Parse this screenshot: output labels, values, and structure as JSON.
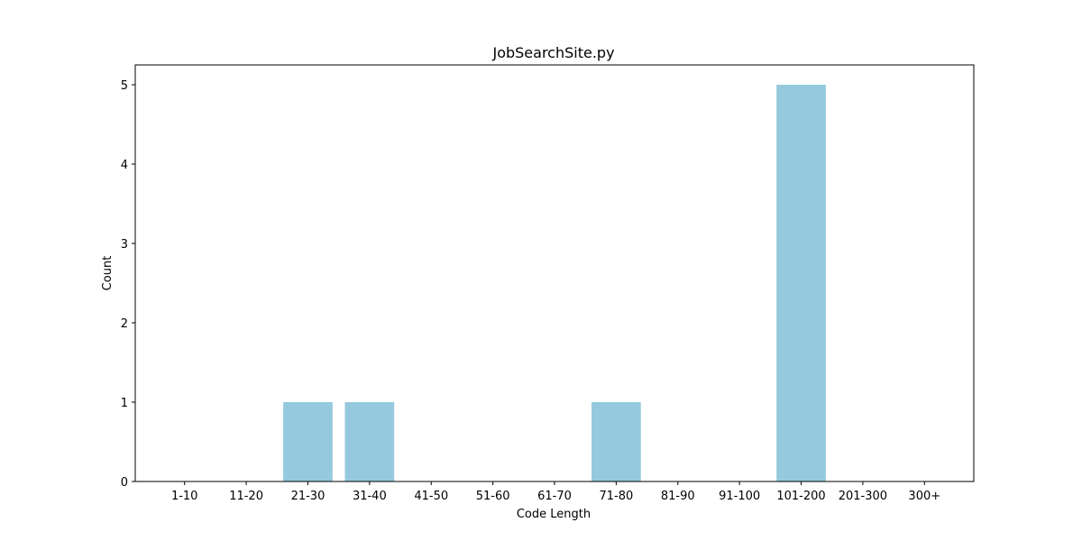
{
  "chart_data": {
    "type": "bar",
    "title": "JobSearchSite.py",
    "xlabel": "Code Length",
    "ylabel": "Count",
    "categories": [
      "1-10",
      "11-20",
      "21-30",
      "31-40",
      "41-50",
      "51-60",
      "61-70",
      "71-80",
      "81-90",
      "91-100",
      "101-200",
      "201-300",
      "300+"
    ],
    "values": [
      0,
      0,
      1,
      1,
      0,
      0,
      0,
      1,
      0,
      0,
      5,
      0,
      0
    ],
    "ylim": [
      0,
      5.25
    ],
    "yticks": [
      "0",
      "1",
      "2",
      "3",
      "4",
      "5"
    ],
    "grid": false,
    "legend": false,
    "bar_color": "#95c9de"
  }
}
